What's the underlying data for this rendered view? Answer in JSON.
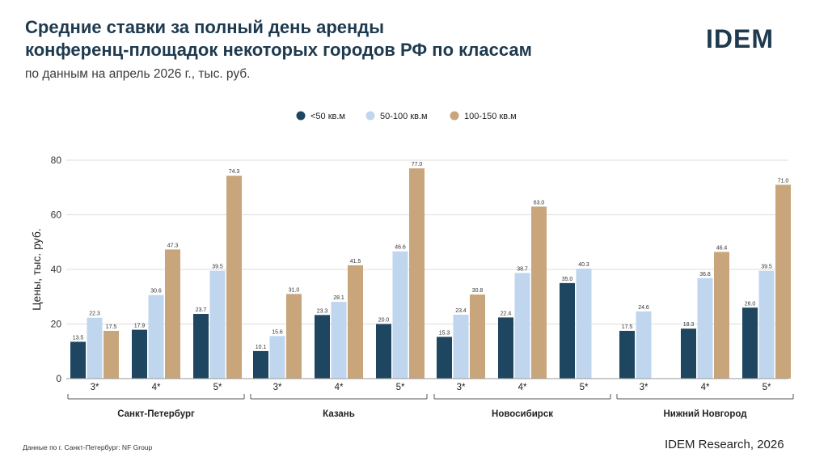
{
  "header": {
    "title_line1": "Средние ставки за полный день аренды",
    "title_line2": "конференц-площадок некоторых городов РФ по классам",
    "subtitle": "по данным на апрель 2026 г., тыс. руб.",
    "logo": "IDEM"
  },
  "footer": {
    "footnote": "Данные по г. Санкт-Петербург: NF Group",
    "source": "IDEM Research, 2026"
  },
  "colors": {
    "series_lt50": "#1f4660",
    "series_50_100": "#bfd6ee",
    "series_100_150": "#c9a57b",
    "grid": "#dddddd",
    "text": "#1e3a4f"
  },
  "chart_data": {
    "type": "bar",
    "ylabel": "Цены, тыс. руб.",
    "ylim": [
      0,
      80
    ],
    "yticks": [
      0,
      20,
      40,
      60,
      80
    ],
    "grid": true,
    "legend_position": "top-center",
    "series_names": [
      "<50 кв.м",
      "50-100 кв.м",
      "100-150 кв.м"
    ],
    "groups": [
      {
        "city": "Санкт-Петербург",
        "classes": [
          {
            "label": "3*",
            "values": [
              13.5,
              22.3,
              17.5
            ]
          },
          {
            "label": "4*",
            "values": [
              17.9,
              30.6,
              47.3
            ]
          },
          {
            "label": "5*",
            "values": [
              23.7,
              39.5,
              74.3
            ]
          }
        ]
      },
      {
        "city": "Казань",
        "classes": [
          {
            "label": "3*",
            "values": [
              10.1,
              15.6,
              31.0
            ]
          },
          {
            "label": "4*",
            "values": [
              23.3,
              28.1,
              41.5
            ]
          },
          {
            "label": "5*",
            "values": [
              20.0,
              46.6,
              77.0
            ]
          }
        ]
      },
      {
        "city": "Новосибирск",
        "classes": [
          {
            "label": "3*",
            "values": [
              15.3,
              23.4,
              30.8
            ]
          },
          {
            "label": "4*",
            "values": [
              22.4,
              38.7,
              63.0
            ]
          },
          {
            "label": "5*",
            "values": [
              35.0,
              40.3,
              null
            ]
          }
        ]
      },
      {
        "city": "Нижний Новгород",
        "classes": [
          {
            "label": "3*",
            "values": [
              17.5,
              24.6,
              null
            ]
          },
          {
            "label": "4*",
            "values": [
              18.3,
              36.8,
              46.4
            ]
          },
          {
            "label": "5*",
            "values": [
              26.0,
              39.5,
              71.0
            ]
          }
        ]
      }
    ]
  }
}
